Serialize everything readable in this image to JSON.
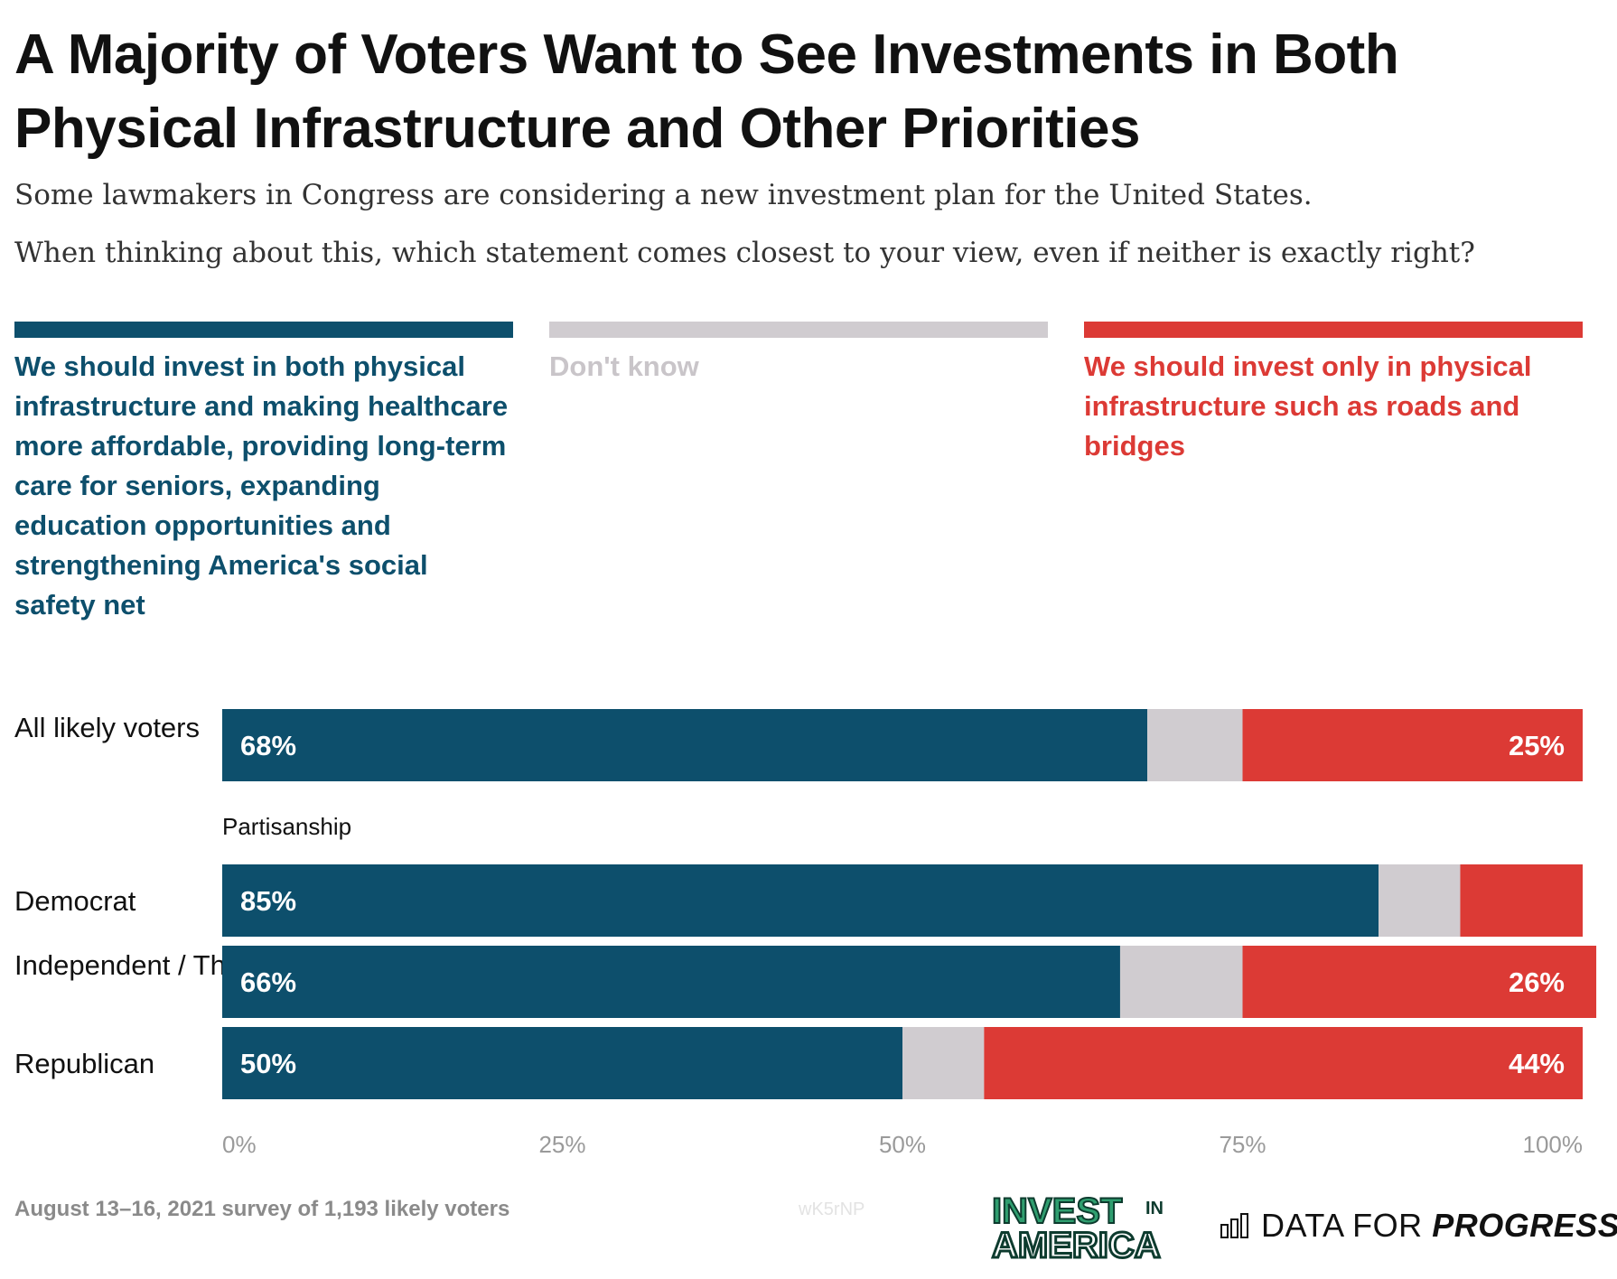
{
  "header": {
    "title": "A Majority of Voters Want to See Investments in Both Physical Infrastructure and Other Priorities",
    "subtitle_1": "Some lawmakers in Congress are considering a new investment plan for the United States.",
    "subtitle_2": "When thinking about this, which statement comes closest to your view, even if neither is exactly right?"
  },
  "legend": [
    {
      "label": "We should invest in both physical infrastructure and making healthcare more affordable, providing long-term care for seniors, expanding education opportunities and strengthening America's social safety net",
      "color": "#0d4f6c"
    },
    {
      "label": "Don't know",
      "color": "#d0ccd0"
    },
    {
      "label": "We should invest only in physical infrastructure such as roads and bridges",
      "color": "#dc3a35"
    }
  ],
  "chart_data": {
    "type": "bar",
    "orientation": "horizontal",
    "stacked": true,
    "categories": [
      "All likely voters",
      "Democrat",
      "Independent / Third party",
      "Republican"
    ],
    "group_label": "Partisanship",
    "series": [
      {
        "name": "We should invest in both physical infrastructure and making healthcare more affordable, providing long-term care for seniors, expanding education opportunities and strengthening America's social safety net",
        "values": [
          68,
          85,
          66,
          50
        ],
        "color": "#0d4f6c"
      },
      {
        "name": "Don't know",
        "values": [
          7,
          6,
          9,
          6
        ],
        "color": "#d0ccd0"
      },
      {
        "name": "We should invest only in physical infrastructure such as roads and bridges",
        "values": [
          25,
          9,
          26,
          44
        ],
        "color": "#dc3a35"
      }
    ],
    "data_labels": [
      {
        "left": "68%",
        "right": "25%"
      },
      {
        "left": "85%",
        "right": ""
      },
      {
        "left": "66%",
        "right": "26%"
      },
      {
        "left": "50%",
        "right": "44%"
      }
    ],
    "x_ticks": [
      "0%",
      "25%",
      "50%",
      "75%",
      "100%"
    ],
    "xlim": [
      0,
      100
    ],
    "grid": false
  },
  "footer": {
    "note": "August 13–16, 2021 survey of 1,193 likely voters",
    "chart_id": "wK5rNP",
    "logo_invest_top": "INVEST",
    "logo_invest_in": "IN",
    "logo_invest_bottom": "AMERICA",
    "logo_dfp_regular": "DATA FOR ",
    "logo_dfp_bold": "PROGRESS"
  }
}
